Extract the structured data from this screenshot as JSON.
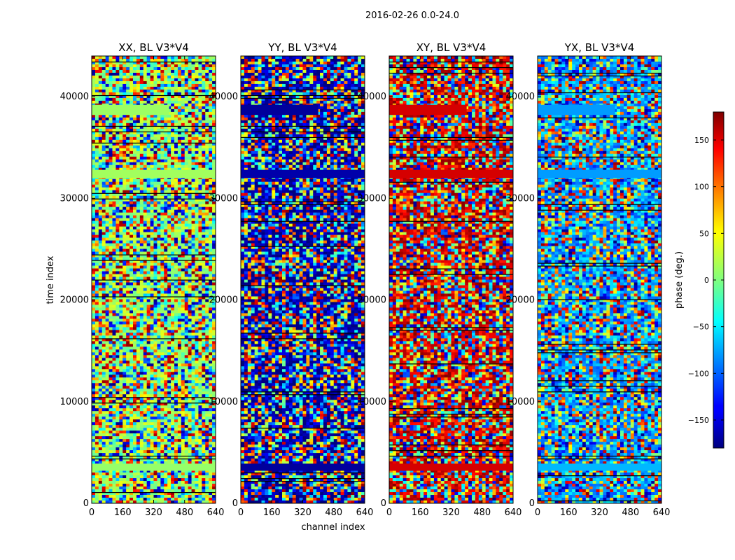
{
  "chart_data": {
    "type": "heatmap",
    "suptitle": "2016-02-26 0.0-24.0",
    "xlabel": "channel index",
    "ylabel": "time index",
    "xlim": [
      0,
      640
    ],
    "ylim": [
      0,
      44000
    ],
    "xticks": [
      0,
      160,
      320,
      480,
      640
    ],
    "yticks": [
      0,
      10000,
      20000,
      30000,
      40000
    ],
    "colormap": "jet",
    "colorbar": {
      "label": "phase (deg.)",
      "range": [
        -180,
        180
      ],
      "ticks": [
        -150,
        -100,
        -50,
        0,
        50,
        100,
        150
      ],
      "tick_labels": [
        "−150",
        "−100",
        "−50",
        "0",
        "50",
        "100",
        "150"
      ]
    },
    "panels": [
      {
        "title": "XX, BL V3*V4",
        "dominant_phase": 10,
        "strong_bands": [
          {
            "t0": 38200,
            "t1": 39200,
            "c1": 400,
            "phase": 10
          },
          {
            "t0": 32000,
            "t1": 32800,
            "c1": 640,
            "phase": 12
          },
          {
            "t0": 3200,
            "t1": 3900,
            "c1": 640,
            "phase": 8
          }
        ]
      },
      {
        "title": "YY, BL V3*V4",
        "dominant_phase": -170,
        "strong_bands": [
          {
            "t0": 38200,
            "t1": 39200,
            "c1": 400,
            "phase": -170
          },
          {
            "t0": 32000,
            "t1": 32800,
            "c1": 640,
            "phase": -165
          },
          {
            "t0": 3200,
            "t1": 3900,
            "c1": 640,
            "phase": -170
          }
        ]
      },
      {
        "title": "XY, BL V3*V4",
        "dominant_phase": 150,
        "strong_bands": [
          {
            "t0": 38200,
            "t1": 39200,
            "c1": 400,
            "phase": 150
          },
          {
            "t0": 32000,
            "t1": 32800,
            "c1": 640,
            "phase": 150
          },
          {
            "t0": 3200,
            "t1": 3900,
            "c1": 640,
            "phase": 150
          }
        ]
      },
      {
        "title": "YX, BL V3*V4",
        "dominant_phase": -80,
        "strong_bands": [
          {
            "t0": 38200,
            "t1": 39200,
            "c1": 400,
            "phase": -80
          },
          {
            "t0": 32000,
            "t1": 32800,
            "c1": 640,
            "phase": -80
          },
          {
            "t0": 3200,
            "t1": 3900,
            "c1": 640,
            "phase": -70
          }
        ]
      }
    ]
  }
}
